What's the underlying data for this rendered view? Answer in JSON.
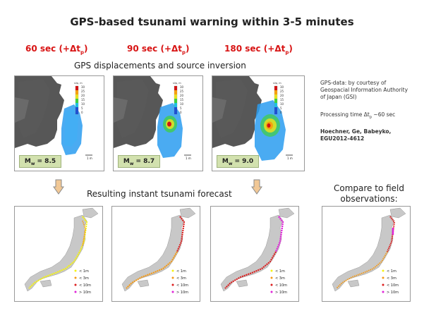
{
  "title": "GPS-based tsunami warning within 3-5 minutes",
  "times": [
    {
      "main": "60 sec (+Δt",
      "sub": "p",
      "close": ")"
    },
    {
      "main": "90 sec (+Δt",
      "sub": "p",
      "close": ")"
    },
    {
      "main": "180 sec (+Δt",
      "sub": "p",
      "close": ")"
    }
  ],
  "section_top": "GPS displacements and source inversion",
  "section_bottom": "Resulting instant tsunami forecast",
  "magnitudes": [
    {
      "prefix": "M",
      "sub": "w",
      "value": " = 8.5"
    },
    {
      "prefix": "M",
      "sub": "w",
      "value": " = 8.7"
    },
    {
      "prefix": "M",
      "sub": "w",
      "value": " = 9.0"
    }
  ],
  "colorbar": {
    "unit": "slip, m",
    "ticks": [
      "30",
      "25",
      "20",
      "15",
      "10",
      "5",
      "0"
    ]
  },
  "scale_label": "1 m",
  "side_notes": {
    "credit": "GPS-data: by courtesy of Geospacial Information Authority of Japan (GSI)",
    "processing_prefix": "Processing time Δt",
    "processing_sub": "p",
    "processing_suffix": " ~60 sec",
    "reference": "Hoechner, Ge, Babeyko, EGU2012-4612"
  },
  "compare_label": "Compare to field observations:",
  "legend": [
    {
      "label": "< 1m",
      "color": "#f4f214"
    },
    {
      "label": "< 3m",
      "color": "#f59a16"
    },
    {
      "label": "< 10m",
      "color": "#dc1f1f"
    },
    {
      "label": "> 10m",
      "color": "#e023d8"
    }
  ],
  "colors": {
    "title_red": "#d81414",
    "land": "#c8c8c8",
    "slip_ocean": "#2a9cf0",
    "arrow": "#e8b06a"
  }
}
